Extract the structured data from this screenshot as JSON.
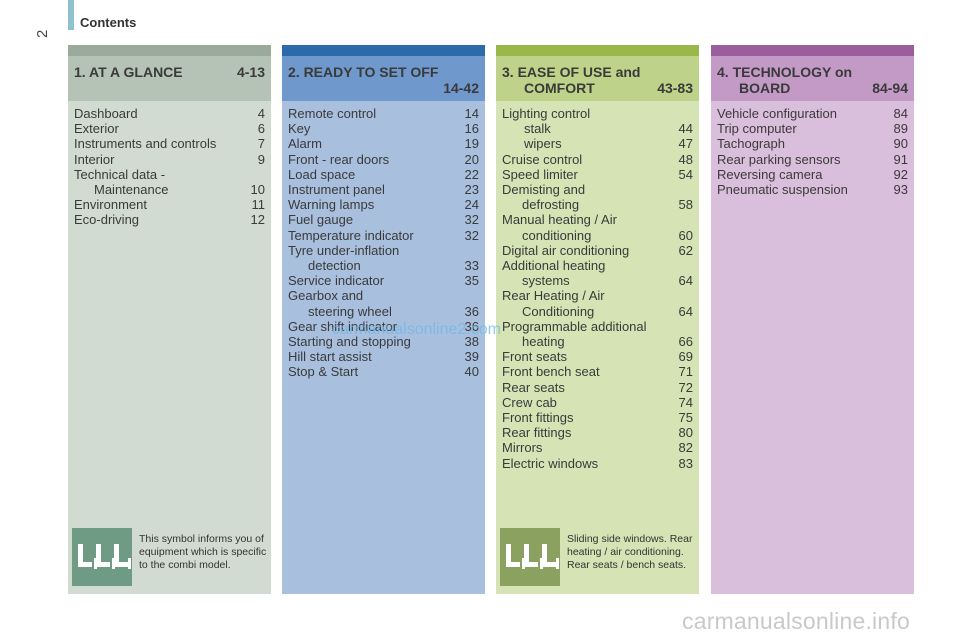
{
  "page": {
    "number": "2",
    "header": "Contents"
  },
  "colors": {
    "col1_strip": "#9bab9b",
    "col1_head": "#b4c3b5",
    "col1_body": "#d1dbd1",
    "col2_strip": "#2d6aaa",
    "col2_head": "#6f98cc",
    "col2_body": "#a9bfde",
    "col3_strip": "#9ab84a",
    "col3_head": "#bed28a",
    "col3_body": "#d6e3b5",
    "col4_strip": "#9a5e9e",
    "col4_head": "#c39ac6",
    "col4_body": "#dabfdc",
    "icon_col1": "#6f9a83",
    "icon_col3": "#8aa15f"
  },
  "columns": [
    {
      "title_line1": "1. AT A GLANCE",
      "title_line2": "",
      "range": "4-13",
      "entries": [
        {
          "label": "Dashboard",
          "page": "4"
        },
        {
          "label": "Exterior",
          "page": "6"
        },
        {
          "label": "Instruments and controls",
          "page": "7"
        },
        {
          "label": "Interior",
          "page": "9"
        },
        {
          "label": "Technical data -",
          "cont": "Maintenance",
          "page": "10"
        },
        {
          "label": "Environment",
          "page": "11"
        },
        {
          "label": "Eco-driving",
          "page": "12"
        }
      ],
      "note": {
        "icon": "seats-icon",
        "text": "This symbol informs you of equipment which is specific to the combi model."
      }
    },
    {
      "title_line1": "2. READY TO SET OFF",
      "title_line2": "",
      "range": "14-42",
      "entries": [
        {
          "label": "Remote control",
          "page": "14"
        },
        {
          "label": "Key",
          "page": "16"
        },
        {
          "label": "Alarm",
          "page": "19"
        },
        {
          "label": "Front - rear doors",
          "page": "20"
        },
        {
          "label": "Load space",
          "page": "22"
        },
        {
          "label": "Instrument panel",
          "page": "23"
        },
        {
          "label": "Warning lamps",
          "page": "24"
        },
        {
          "label": "Fuel gauge",
          "page": "32"
        },
        {
          "label": "Temperature indicator",
          "page": "32"
        },
        {
          "label": "Tyre under-inflation",
          "cont": "detection",
          "page": "33"
        },
        {
          "label": "Service indicator",
          "page": "35"
        },
        {
          "label": "Gearbox and",
          "cont": "steering wheel",
          "page": "36"
        },
        {
          "label": "Gear shift indicator",
          "page": "36"
        },
        {
          "label": "Starting and stopping",
          "page": "38"
        },
        {
          "label": "Hill start assist",
          "page": "39"
        },
        {
          "label": "Stop & Start",
          "page": "40"
        }
      ]
    },
    {
      "title_line1": "3. EASE OF USE and",
      "title_line2": "COMFORT",
      "range": "43-83",
      "entries": [
        {
          "label": "Lighting control",
          "page": ""
        },
        {
          "label": "",
          "cont": "stalk",
          "page": "44"
        },
        {
          "label": "",
          "cont": "wipers",
          "page": "47"
        },
        {
          "label": "Cruise control",
          "page": "48"
        },
        {
          "label": "Speed limiter",
          "page": "54"
        },
        {
          "label": "Demisting and",
          "cont": "defrosting",
          "page": "58"
        },
        {
          "label": "Manual heating / Air",
          "cont": "conditioning",
          "page": "60"
        },
        {
          "label": "Digital air conditioning",
          "page": "62"
        },
        {
          "label": "Additional heating",
          "cont": "systems",
          "page": "64"
        },
        {
          "label": "Rear Heating / Air",
          "cont": "Conditioning",
          "page": "64"
        },
        {
          "label": "Programmable additional",
          "cont": "heating",
          "page": "66"
        },
        {
          "label": "Front seats",
          "page": "69"
        },
        {
          "label": "Front bench seat",
          "page": "71"
        },
        {
          "label": "Rear seats",
          "page": "72"
        },
        {
          "label": "Crew cab",
          "page": "74"
        },
        {
          "label": "Front fittings",
          "page": "75"
        },
        {
          "label": "Rear fittings",
          "page": "80"
        },
        {
          "label": "Mirrors",
          "page": "82"
        },
        {
          "label": "Electric windows",
          "page": "83"
        }
      ],
      "note": {
        "icon": "seats-icon",
        "text": "Sliding side windows. Rear heating / air conditioning. Rear seats / bench seats."
      }
    },
    {
      "title_line1": "4. TECHNOLOGY on",
      "title_line2": "BOARD",
      "range": "84-94",
      "entries": [
        {
          "label": "Vehicle configuration",
          "page": "84"
        },
        {
          "label": "Trip computer",
          "page": "89"
        },
        {
          "label": "Tachograph",
          "page": "90"
        },
        {
          "label": "Rear parking sensors",
          "page": "91"
        },
        {
          "label": "Reversing camera",
          "page": "92"
        },
        {
          "label": "Pneumatic suspension",
          "page": "93"
        }
      ]
    }
  ],
  "watermarks": {
    "mid": "carmanualsonline2.com",
    "bottom": "carmanualsonline.info"
  }
}
